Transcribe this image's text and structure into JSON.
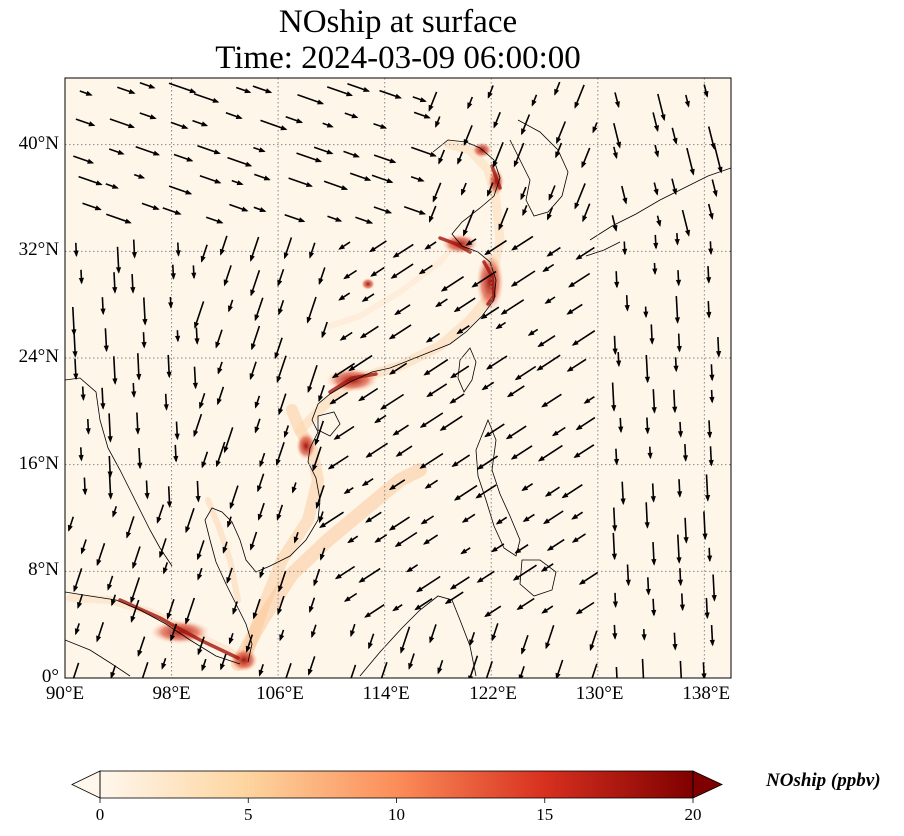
{
  "title": {
    "line1": "NOship at surface",
    "line2": "Time: 2024-03-09 06:00:00"
  },
  "map": {
    "lon_range": [
      90,
      140
    ],
    "lat_range": [
      0,
      45
    ],
    "lon_ticks": [
      "90°E",
      "98°E",
      "106°E",
      "114°E",
      "122°E",
      "130°E",
      "138°E"
    ],
    "lat_ticks": [
      "0°",
      "8°N",
      "16°N",
      "24°N",
      "32°N",
      "40°N"
    ],
    "gridlines": "dotted grey",
    "colormap": "OrRd",
    "vector_field": "surface wind arrows"
  },
  "colorbar": {
    "label": "NOship (ppbv)",
    "ticks": [
      "0",
      "5",
      "10",
      "15",
      "20"
    ],
    "range": [
      0,
      20
    ],
    "extend": "both"
  }
}
